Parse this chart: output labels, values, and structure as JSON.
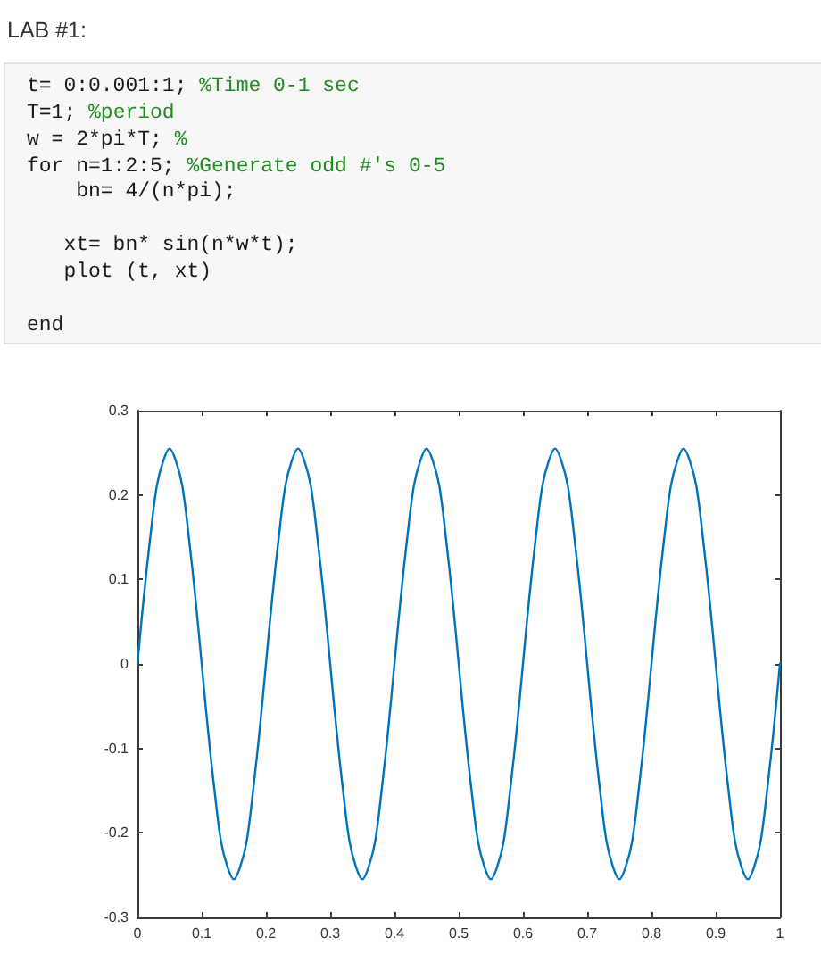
{
  "chart_data": {
    "type": "line",
    "title": "LAB #1:",
    "annotations": [
      "t= 0:0.001:1; %Time 0-1 sec\nT=1; %period\nw = 2*pi*T; %\nfor n=1:2:5; %Generate odd #'s 0-5\n    bn= 4/(n*pi);\n\n   xt= bn* sin(n*w*t);\n   plot (t, xt)\n\nend"
    ],
    "x": [
      0,
      0.01,
      0.02,
      0.03,
      0.04,
      0.05,
      0.06,
      0.07,
      0.08,
      0.09,
      0.1,
      0.11,
      0.12,
      0.13,
      0.14,
      0.15,
      0.16,
      0.17,
      0.18,
      0.19,
      0.2,
      0.21,
      0.22,
      0.23,
      0.24,
      0.25,
      0.26,
      0.27,
      0.28,
      0.29,
      0.3,
      0.31,
      0.32,
      0.33,
      0.34,
      0.35,
      0.36,
      0.37,
      0.38,
      0.39,
      0.4,
      0.41,
      0.42,
      0.43,
      0.44,
      0.45,
      0.46,
      0.47,
      0.48,
      0.49,
      0.5,
      0.51,
      0.52,
      0.53,
      0.54,
      0.55,
      0.56,
      0.57,
      0.58,
      0.59,
      0.6,
      0.61,
      0.62,
      0.63,
      0.64,
      0.65,
      0.66,
      0.67,
      0.68,
      0.69,
      0.7,
      0.71,
      0.72,
      0.73,
      0.74,
      0.75,
      0.76,
      0.77,
      0.78,
      0.79,
      0.8,
      0.81,
      0.82,
      0.83,
      0.84,
      0.85,
      0.86,
      0.87,
      0.88,
      0.89,
      0.9,
      0.91,
      0.92,
      0.93,
      0.94,
      0.95,
      0.96,
      0.97,
      0.98,
      0.99,
      1
    ],
    "series": [
      {
        "color": "#0072bd",
        "values": [
          0,
          0.08,
          0.15,
          0.21,
          0.24,
          0.255,
          0.24,
          0.21,
          0.15,
          0.08,
          0,
          -0.08,
          -0.15,
          -0.21,
          -0.24,
          -0.255,
          -0.24,
          -0.21,
          -0.15,
          -0.08,
          0,
          0.08,
          0.15,
          0.21,
          0.24,
          0.255,
          0.24,
          0.21,
          0.15,
          0.08,
          0,
          -0.08,
          -0.15,
          -0.21,
          -0.24,
          -0.255,
          -0.24,
          -0.21,
          -0.15,
          -0.08,
          0,
          0.08,
          0.15,
          0.21,
          0.24,
          0.255,
          0.24,
          0.21,
          0.15,
          0.08,
          0,
          -0.08,
          -0.15,
          -0.21,
          -0.24,
          -0.255,
          -0.24,
          -0.21,
          -0.15,
          -0.08,
          0,
          0.08,
          0.15,
          0.21,
          0.24,
          0.255,
          0.24,
          0.21,
          0.15,
          0.08,
          0,
          -0.08,
          -0.15,
          -0.21,
          -0.24,
          -0.255,
          -0.24,
          -0.21,
          -0.15,
          -0.08,
          0,
          0.08,
          0.15,
          0.21,
          0.24,
          0.255,
          0.24,
          0.21,
          0.15,
          0.08,
          0,
          -0.08,
          -0.15,
          -0.21,
          -0.24,
          -0.255,
          -0.24,
          -0.21,
          -0.15,
          -0.08,
          0
        ]
      }
    ],
    "xlim": [
      0,
      1
    ],
    "xticks": [
      0,
      0.1,
      0.2,
      0.3,
      0.4,
      0.5,
      0.6,
      0.7,
      0.8,
      0.9,
      1
    ],
    "ylim": [
      -0.3,
      0.3
    ],
    "yticks": [
      -0.3,
      -0.2,
      -0.1,
      0,
      0.1,
      0.2,
      0.3
    ],
    "line_style": "solid"
  }
}
